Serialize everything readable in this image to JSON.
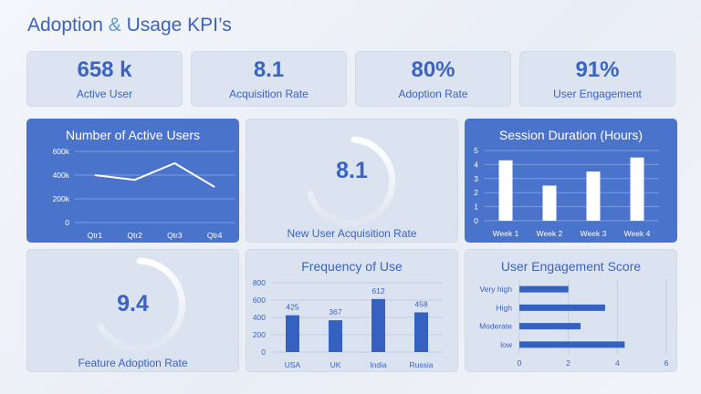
{
  "page": {
    "title_part1": "Adoption",
    "title_amp": "&",
    "title_part2": "Usage KPI’s"
  },
  "kpis": [
    {
      "value": "658 k",
      "label": "Active User"
    },
    {
      "value": "8.1",
      "label": "Acquisition Rate"
    },
    {
      "value": "80%",
      "label": "Adoption Rate"
    },
    {
      "value": "91%",
      "label": "User Engagement"
    }
  ],
  "gauges": {
    "acquisition": {
      "value": "8.1",
      "label": "New User Acquisition Rate"
    },
    "feature": {
      "value": "9.4",
      "label": "Feature Adoption Rate"
    }
  },
  "colors": {
    "primary": "#3a63c4",
    "card_blue": "#4a73cc",
    "card_light": "#dce3f0",
    "bar_dark": "#3561c0"
  },
  "chart_data": [
    {
      "id": "active_users",
      "type": "line",
      "title": "Number of Active Users",
      "categories": [
        "Qtr1",
        "Qtr2",
        "Qtr3",
        "Qtr4"
      ],
      "values": [
        400,
        360,
        500,
        300
      ],
      "yticks": [
        "0",
        "200k",
        "400k",
        "600k"
      ],
      "ylim": [
        0,
        600
      ],
      "grid": true
    },
    {
      "id": "session_duration",
      "type": "bar",
      "title": "Session Duration (Hours)",
      "categories": [
        "Week 1",
        "Week 2",
        "Week 3",
        "Week 4"
      ],
      "values": [
        4.3,
        2.5,
        3.5,
        4.5
      ],
      "yticks": [
        "0",
        "1",
        "2",
        "3",
        "4",
        "5"
      ],
      "ylim": [
        0,
        5
      ],
      "grid": true
    },
    {
      "id": "frequency",
      "type": "bar",
      "title": "Frequency of Use",
      "categories": [
        "USA",
        "UK",
        "India",
        "Russia"
      ],
      "values": [
        425,
        367,
        612,
        458
      ],
      "data_labels": [
        "425",
        "367",
        "612",
        "458"
      ],
      "yticks": [
        "0",
        "200",
        "400",
        "600",
        "800"
      ],
      "ylim": [
        0,
        800
      ],
      "grid": true
    },
    {
      "id": "engagement_score",
      "type": "bar",
      "orientation": "horizontal",
      "title": "User Engagement Score",
      "categories": [
        "Very high",
        "High",
        "Moderate",
        "low"
      ],
      "values": [
        2.0,
        3.5,
        2.5,
        4.3
      ],
      "xticks": [
        "0",
        "2",
        "4",
        "6"
      ],
      "xlim": [
        0,
        6
      ],
      "grid": true
    }
  ]
}
